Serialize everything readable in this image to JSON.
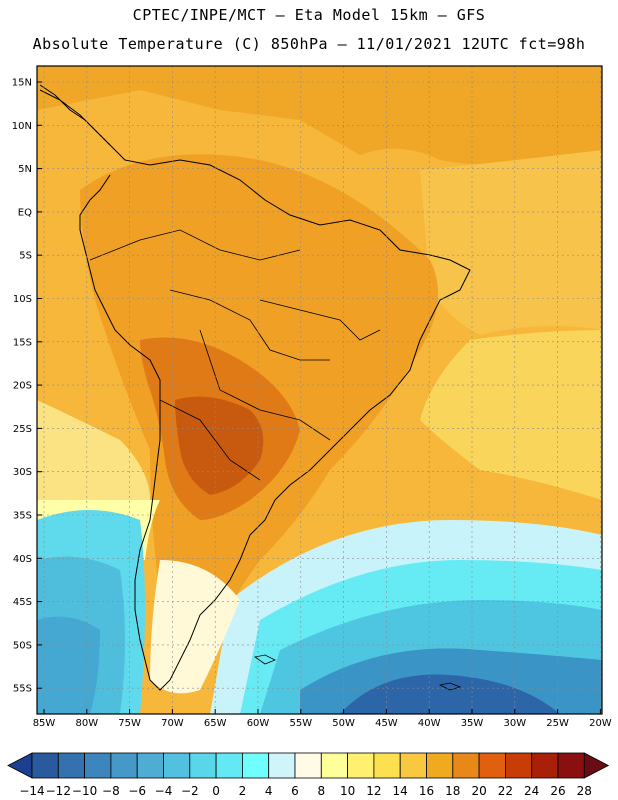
{
  "header": {
    "line1": "CPTEC/INPE/MCT –  Eta Model 15km – GFS",
    "line2": "Absolute Temperature (C) 850hPa – 11/01/2021 12UTC fct=98h"
  },
  "map": {
    "lat_labels": [
      "15N",
      "10N",
      "5N",
      "EQ",
      "5S",
      "10S",
      "15S",
      "20S",
      "25S",
      "30S",
      "35S",
      "40S",
      "45S",
      "50S",
      "55S"
    ],
    "lon_labels": [
      "85W",
      "80W",
      "75W",
      "70W",
      "65W",
      "60W",
      "55W",
      "50W",
      "45W",
      "40W",
      "35W",
      "30W",
      "25W",
      "20W"
    ]
  },
  "colorbar": {
    "labels": [
      "-14",
      "-12",
      "-10",
      "-8",
      "-6",
      "-4",
      "-2",
      "0",
      "2",
      "4",
      "6",
      "8",
      "10",
      "12",
      "14",
      "16",
      "18",
      "20",
      "22",
      "24",
      "26",
      "28"
    ],
    "colors": [
      "#1c3f8f",
      "#2a5a9e",
      "#3471ae",
      "#3d85bd",
      "#4599c8",
      "#4fadd3",
      "#52c1df",
      "#5ad6ea",
      "#62e9f4",
      "#70ffff",
      "#cff5fb",
      "#fffbe6",
      "#ffff99",
      "#fff070",
      "#fde050",
      "#f8c840",
      "#f0aa20",
      "#e88818",
      "#e06010",
      "#c83c08",
      "#a82008",
      "#8a1010",
      "#6a0c14"
    ]
  }
}
